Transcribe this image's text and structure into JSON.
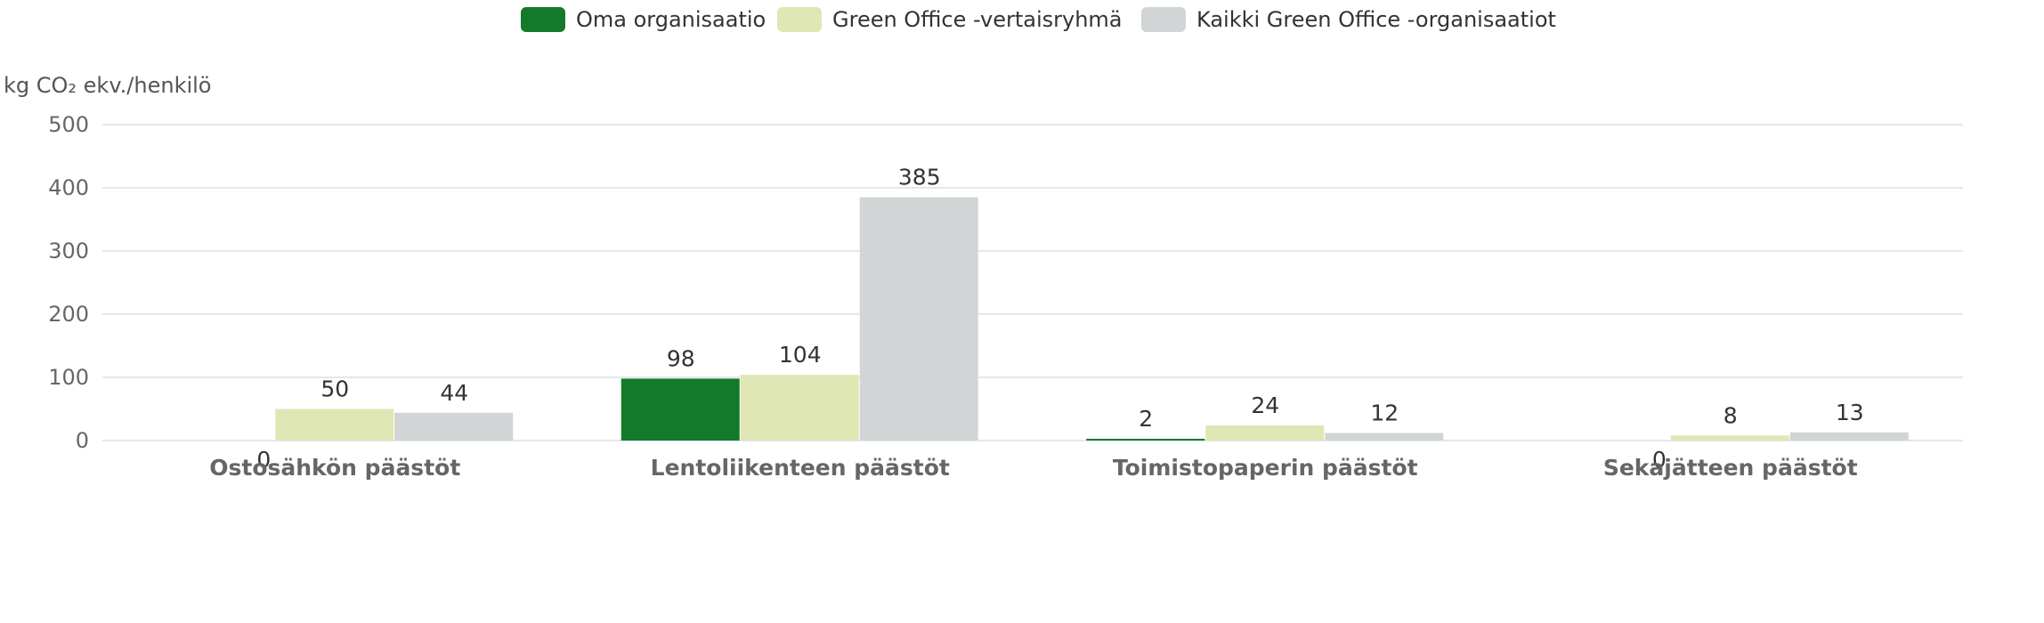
{
  "chart_data": {
    "type": "bar",
    "ylabel": "kg CO₂ ekv./henkilö",
    "categories": [
      "Ostosähkön päästöt",
      "Lentoliikenteen päästöt",
      "Toimistopaperin päästöt",
      "Sekajätteen päästöt"
    ],
    "series": [
      {
        "name": "Oma organisaatio",
        "values": [
          0,
          98,
          2,
          0
        ],
        "color": "#137a2c"
      },
      {
        "name": "Green Office -vertaisryhmä",
        "values": [
          50,
          104,
          24,
          8
        ],
        "color": "#dfe7b5"
      },
      {
        "name": "Kaikki Green Office -organisaatiot",
        "values": [
          44,
          385,
          12,
          13
        ],
        "color": "#d1d5d5"
      }
    ],
    "ylim": [
      0,
      500
    ],
    "yticks": [
      0,
      100,
      200,
      300,
      400,
      500
    ],
    "grid": true,
    "legend_position": "top-center"
  }
}
